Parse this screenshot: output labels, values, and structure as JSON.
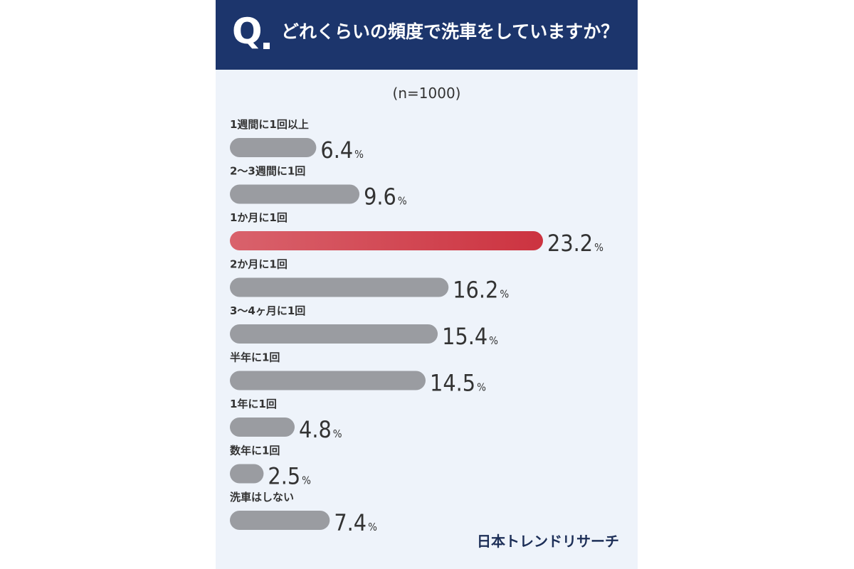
{
  "header": {
    "q_mark": "Q",
    "question": "どれくらいの頻度で洗車をしていますか？"
  },
  "sample_size": "(n=1000)",
  "brand": "日本トレンドリサーチ",
  "colors": {
    "header_bg": "#1c356c",
    "background": "#eef3fa",
    "bar_default": "#9a9ca1",
    "highlight": "#cc3340",
    "text": "#333333"
  },
  "chart_data": {
    "type": "bar",
    "orientation": "horizontal",
    "title": "どれくらいの頻度で洗車をしていますか？",
    "categories": [
      "1週間に1回以上",
      "2〜3週間に1回",
      "1か月に1回",
      "2か月に1回",
      "3〜4ヶ月に1回",
      "半年に1回",
      "1年に1回",
      "数年に1回",
      "洗車はしない"
    ],
    "values": [
      6.4,
      9.6,
      23.2,
      16.2,
      15.4,
      14.5,
      4.8,
      2.5,
      7.4
    ],
    "value_labels": [
      "6.4",
      "9.6",
      "23.2",
      "16.2",
      "15.4",
      "14.5",
      "4.8",
      "2.5",
      "7.4"
    ],
    "unit": "%",
    "highlight_index": 2,
    "xlim": [
      0,
      23.2
    ],
    "grid": false
  }
}
